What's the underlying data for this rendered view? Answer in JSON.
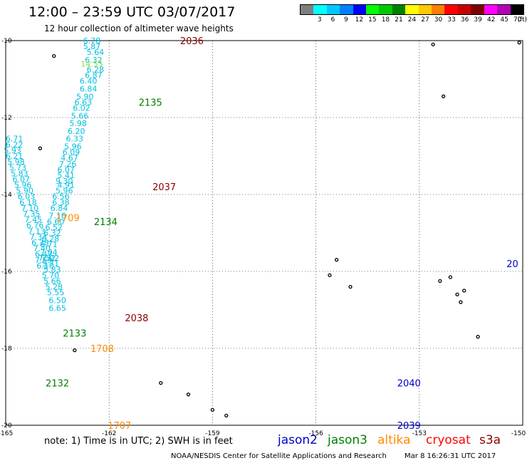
{
  "header": {
    "title": "12:00 – 23:59 UTC 03/07/2017",
    "subtitle": "12 hour collection of altimeter wave heights"
  },
  "legend": {
    "unit": "(ft)",
    "items": [
      {
        "value": "",
        "color": "#7f7f7f"
      },
      {
        "value": "3",
        "color": "#00ffff"
      },
      {
        "value": "6",
        "color": "#00c8ff"
      },
      {
        "value": "9",
        "color": "#0080ff"
      },
      {
        "value": "12",
        "color": "#0000ff"
      },
      {
        "value": "15",
        "color": "#00ff00"
      },
      {
        "value": "18",
        "color": "#00c800"
      },
      {
        "value": "21",
        "color": "#008000"
      },
      {
        "value": "24",
        "color": "#ffff00"
      },
      {
        "value": "27",
        "color": "#ffc800"
      },
      {
        "value": "30",
        "color": "#ff8000"
      },
      {
        "value": "33",
        "color": "#ff0000"
      },
      {
        "value": "36",
        "color": "#c80000"
      },
      {
        "value": "39",
        "color": "#800000"
      },
      {
        "value": "42",
        "color": "#ff00ff"
      },
      {
        "value": "45",
        "color": "#b400b4"
      },
      {
        "value": "70",
        "color": "#000000"
      }
    ]
  },
  "axes": {
    "lat_labels": [
      "-10",
      "-12",
      "-14",
      "-16",
      "-18",
      "-20"
    ],
    "lon_labels": [
      "-165",
      "-162",
      "-159",
      "-156",
      "-153",
      "-150"
    ]
  },
  "colors": {
    "swh_text": "#00bfe0",
    "swh_yellowgreen": "#7fdf3f",
    "jason2": "#0000c8",
    "jason3": "#008000",
    "altika": "#ff8c00",
    "cryosat": "#ff0000",
    "s3a": "#8b0000"
  },
  "tracks": [
    {
      "satellite": "cryosat",
      "times": [
        {
          "label": "2036",
          "lat": -10.0,
          "lon": -159.6
        },
        {
          "label": "2037",
          "lat": -13.8,
          "lon": -160.4
        },
        {
          "label": "2038",
          "lat": -17.2,
          "lon": -161.2
        }
      ]
    },
    {
      "satellite": "jason3",
      "times": [
        {
          "label": "2135",
          "lat": -11.6,
          "lon": -160.8
        },
        {
          "label": "2134",
          "lat": -14.7,
          "lon": -162.1
        },
        {
          "label": "2133",
          "lat": -17.6,
          "lon": -163.0
        },
        {
          "label": "2132",
          "lat": -18.9,
          "lon": -163.5
        }
      ]
    },
    {
      "satellite": "altika",
      "times": [
        {
          "label": "1709",
          "lat": -14.6,
          "lon": -163.2
        },
        {
          "label": "1708",
          "lat": -18.0,
          "lon": -162.2
        },
        {
          "label": "1707",
          "lat": -20.0,
          "lon": -161.7
        }
      ]
    },
    {
      "satellite": "jason2",
      "times": [
        {
          "label": "2040",
          "lat": -18.9,
          "lon": -153.3
        },
        {
          "label": "2039",
          "lat": -20.0,
          "lon": -153.3
        },
        {
          "label": "20",
          "lat": -15.8,
          "lon": -150.3
        }
      ]
    }
  ],
  "swh_values": [
    {
      "v": "6.78",
      "lat": -10.0,
      "lon": -162.5
    },
    {
      "v": "5.87",
      "lat": -10.15,
      "lon": -162.5
    },
    {
      "v": "5.64",
      "lat": -10.3,
      "lon": -162.4
    },
    {
      "v": "6.32",
      "lat": -10.5,
      "lon": -162.45
    },
    {
      "v": "14.55",
      "lat": -10.6,
      "lon": -162.5,
      "c": "yellowgreen"
    },
    {
      "v": "6.28",
      "lat": -10.75,
      "lon": -162.4
    },
    {
      "v": "6.87",
      "lat": -10.9,
      "lon": -162.45
    },
    {
      "v": "6.40",
      "lat": -11.05,
      "lon": -162.6
    },
    {
      "v": "6.84",
      "lat": -11.25,
      "lon": -162.6
    },
    {
      "v": "5.90",
      "lat": -11.45,
      "lon": -162.7
    },
    {
      "v": "6.63",
      "lat": -11.6,
      "lon": -162.75
    },
    {
      "v": "6.02",
      "lat": -11.75,
      "lon": -162.8
    },
    {
      "v": "5.66",
      "lat": -11.95,
      "lon": -162.85
    },
    {
      "v": "5.98",
      "lat": -12.15,
      "lon": -162.9
    },
    {
      "v": "6.20",
      "lat": -12.35,
      "lon": -162.95
    },
    {
      "v": "6.33",
      "lat": -12.55,
      "lon": -163.0
    },
    {
      "v": "5.96",
      "lat": -12.75,
      "lon": -163.05
    },
    {
      "v": "6.09",
      "lat": -12.9,
      "lon": -163.1
    },
    {
      "v": "4.67",
      "lat": -13.05,
      "lon": -163.15
    },
    {
      "v": "7.26",
      "lat": -13.2,
      "lon": -163.2
    },
    {
      "v": "6.07",
      "lat": -13.35,
      "lon": -163.25
    },
    {
      "v": "5.41",
      "lat": -13.5,
      "lon": -163.25
    },
    {
      "v": "9.30",
      "lat": -13.65,
      "lon": -163.3
    },
    {
      "v": "4.91",
      "lat": -13.75,
      "lon": -163.25
    },
    {
      "v": "5.96",
      "lat": -13.9,
      "lon": -163.3
    },
    {
      "v": "6.56",
      "lat": -14.05,
      "lon": -163.4
    },
    {
      "v": "6.38",
      "lat": -14.2,
      "lon": -163.4
    },
    {
      "v": "6.84",
      "lat": -14.35,
      "lon": -163.45
    },
    {
      "v": "7.16",
      "lat": -14.55,
      "lon": -163.5
    },
    {
      "v": "6.60",
      "lat": -14.7,
      "lon": -163.55
    },
    {
      "v": "6.52",
      "lat": -14.85,
      "lon": -163.6
    },
    {
      "v": "6.32",
      "lat": -15.0,
      "lon": -163.65
    },
    {
      "v": "6.28",
      "lat": -15.15,
      "lon": -163.7
    },
    {
      "v": "6.71",
      "lat": -15.3,
      "lon": -163.75
    },
    {
      "v": "7.04",
      "lat": -15.5,
      "lon": -163.75
    },
    {
      "v": "7.52",
      "lat": -15.65,
      "lon": -163.8
    },
    {
      "v": "7.02",
      "lat": -15.65,
      "lon": -163.7
    },
    {
      "v": "5.71",
      "lat": -15.8,
      "lon": -163.7
    },
    {
      "v": "5.83",
      "lat": -15.95,
      "lon": -163.65
    },
    {
      "v": "5.70",
      "lat": -16.1,
      "lon": -163.7
    },
    {
      "v": "5.66",
      "lat": -16.25,
      "lon": -163.65
    },
    {
      "v": "5.28",
      "lat": -16.4,
      "lon": -163.6
    },
    {
      "v": "5.55",
      "lat": -16.55,
      "lon": -163.55
    },
    {
      "v": "6.50",
      "lat": -16.75,
      "lon": -163.5
    },
    {
      "v": "6.65",
      "lat": -16.95,
      "lon": -163.5
    },
    {
      "v": "6.71",
      "lat": -12.55,
      "lon": -164.75
    },
    {
      "v": "6.22",
      "lat": -12.7,
      "lon": -164.75
    },
    {
      "v": "5.93",
      "lat": -12.85,
      "lon": -164.8
    },
    {
      "v": "6.21",
      "lat": -13.0,
      "lon": -164.75
    },
    {
      "v": "5.98",
      "lat": -13.15,
      "lon": -164.7
    },
    {
      "v": "5.73",
      "lat": -13.3,
      "lon": -164.65
    },
    {
      "v": "5.83",
      "lat": -13.45,
      "lon": -164.6
    },
    {
      "v": "6.07",
      "lat": -13.6,
      "lon": -164.55
    },
    {
      "v": "5.96",
      "lat": -13.75,
      "lon": -164.5
    },
    {
      "v": "5.90",
      "lat": -13.9,
      "lon": -164.45
    },
    {
      "v": "6.03",
      "lat": -14.05,
      "lon": -164.4
    },
    {
      "v": "6.18",
      "lat": -14.2,
      "lon": -164.35
    },
    {
      "v": "7.10",
      "lat": -14.35,
      "lon": -164.3
    },
    {
      "v": "7.35",
      "lat": -14.5,
      "lon": -164.25
    },
    {
      "v": "7.45",
      "lat": -14.65,
      "lon": -164.2
    },
    {
      "v": "6.76",
      "lat": -14.8,
      "lon": -164.15
    },
    {
      "v": "7.13",
      "lat": -14.95,
      "lon": -164.1
    },
    {
      "v": "7.34",
      "lat": -15.1,
      "lon": -164.05
    },
    {
      "v": "6.38",
      "lat": -15.25,
      "lon": -164.0
    },
    {
      "v": "7.40",
      "lat": -15.4,
      "lon": -163.95
    },
    {
      "v": "6.47",
      "lat": -15.55,
      "lon": -163.9
    },
    {
      "v": "7.59",
      "lat": -15.7,
      "lon": -163.9
    },
    {
      "v": "6.10",
      "lat": -15.85,
      "lon": -163.85
    }
  ],
  "note": {
    "text": "note:  1) Time is in UTC;  2) SWH is in feet"
  },
  "satellites": {
    "jason2": "jason2",
    "jason3": "jason3",
    "altika": "altika",
    "cryosat": "cryosat",
    "s3a": "s3a"
  },
  "footer": {
    "credit": "NOAA/NESDIS Center for Satellite Applications and Research",
    "timestamp": "Mar  8 16:26:31 UTC 2017"
  }
}
